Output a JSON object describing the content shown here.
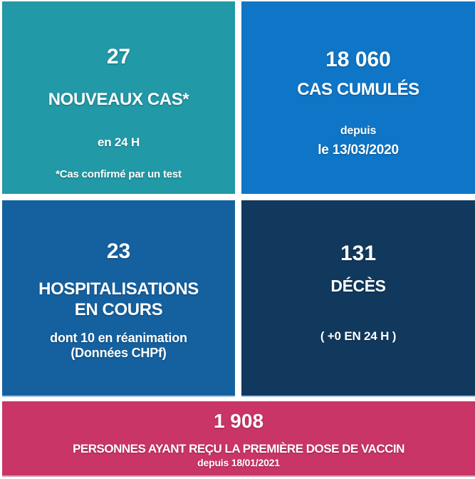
{
  "tiles": [
    {
      "id": "new-cases",
      "color": "#2199A6",
      "value": "27",
      "label": "NOUVEAUX CAS*",
      "sub1": "en 24 H",
      "sub2": "*Cas confirmé par un test"
    },
    {
      "id": "cumulative-cases",
      "color": "#0F76C7",
      "value": "18 060",
      "label": "CAS CUMULÉS",
      "sub1": "depuis",
      "sub2": "le 13/03/2020"
    },
    {
      "id": "hospitalizations",
      "color": "#15619F",
      "value": "23",
      "label_line1": "HOSPITALISATIONS",
      "label_line2": "EN COURS",
      "sub1": "dont 10 en réanimation",
      "sub2": "(Données CHPf)"
    },
    {
      "id": "deaths",
      "color": "#11395E",
      "value": "131",
      "label": "DÉCÈS",
      "sub1": "( +0 EN 24 H )"
    }
  ],
  "banner": {
    "color": "#C93566",
    "value": "1 908",
    "label": "PERSONNES AYANT REÇU LA PREMIÈRE DOSE DE VACCIN",
    "sub": "depuis 18/01/2021"
  },
  "chart_data": {
    "type": "table",
    "title": "Tableau de bord COVID-19",
    "metrics": [
      {
        "label": "NOUVEAUX CAS* en 24 H",
        "value": 27,
        "note": "*Cas confirmé par un test"
      },
      {
        "label": "CAS CUMULÉS depuis le 13/03/2020",
        "value": 18060
      },
      {
        "label": "HOSPITALISATIONS EN COURS",
        "value": 23,
        "note": "dont 10 en réanimation (Données CHPf)"
      },
      {
        "label": "DÉCÈS",
        "value": 131,
        "note": "+0 EN 24 H"
      },
      {
        "label": "PERSONNES AYANT REÇU LA PREMIÈRE DOSE DE VACCIN depuis 18/01/2021",
        "value": 1908
      }
    ]
  }
}
